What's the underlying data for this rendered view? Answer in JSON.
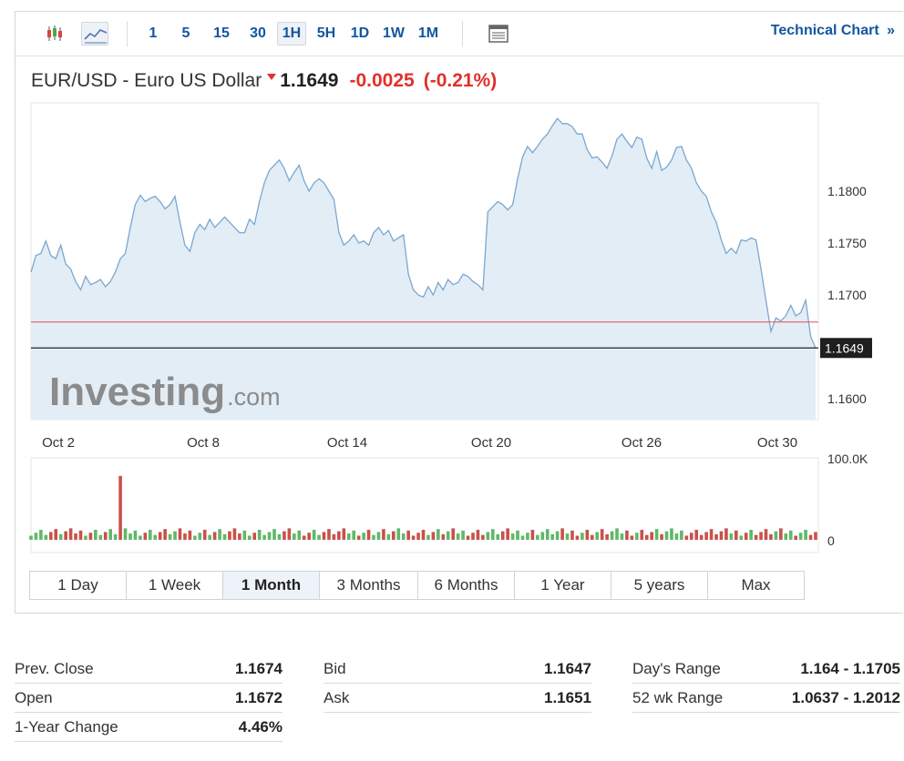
{
  "toolbar": {
    "timeframes": [
      "1",
      "5",
      "15",
      "30",
      "1H",
      "5H",
      "1D",
      "1W",
      "1M"
    ],
    "active_timeframe": "1H",
    "technical_chart_label": "Technical Chart",
    "technical_chart_arrow": "»"
  },
  "header": {
    "name": "EUR/USD - Euro US Dollar",
    "price": "1.1649",
    "change": "-0.0025",
    "change_pct": "(-0.21%)",
    "direction_icon": "down-arrow-icon"
  },
  "colors": {
    "accent": "#1256a0",
    "negative": "#e0312b",
    "line": "#7aa7d0",
    "area": "#e3edf6",
    "prev_close_line": "#e05050",
    "volume_up": "#5fb86a",
    "volume_down": "#c9504b"
  },
  "chart_data": {
    "type": "area",
    "x_tick_labels": [
      "Oct 2",
      "Oct 8",
      "Oct 14",
      "Oct 20",
      "Oct 26",
      "Oct 30"
    ],
    "y_tick_labels": [
      "1.1800",
      "1.1750",
      "1.1700",
      "1.1600"
    ],
    "ylim": [
      1.158,
      1.1885
    ],
    "current_price": 1.1649,
    "current_price_label": "1.1649",
    "reference_line": 1.1674,
    "volume_ticks": [
      "100.0K",
      "0"
    ],
    "volume_max": 100000,
    "watermark_main": "Investing",
    "watermark_suffix": ".com",
    "values": [
      1.1722,
      1.1738,
      1.174,
      1.1752,
      1.1738,
      1.1735,
      1.1748,
      1.173,
      1.1725,
      1.1713,
      1.1705,
      1.1718,
      1.171,
      1.1712,
      1.1715,
      1.1708,
      1.1713,
      1.1722,
      1.1735,
      1.174,
      1.1765,
      1.1787,
      1.1796,
      1.179,
      1.1793,
      1.1795,
      1.179,
      1.1783,
      1.1787,
      1.1795,
      1.177,
      1.1748,
      1.1742,
      1.176,
      1.1768,
      1.1763,
      1.1773,
      1.1765,
      1.177,
      1.1775,
      1.177,
      1.1765,
      1.176,
      1.176,
      1.1773,
      1.1768,
      1.179,
      1.1808,
      1.182,
      1.1825,
      1.183,
      1.1822,
      1.181,
      1.1818,
      1.1825,
      1.181,
      1.18,
      1.1808,
      1.1812,
      1.1808,
      1.18,
      1.1792,
      1.176,
      1.1748,
      1.1752,
      1.1758,
      1.175,
      1.1752,
      1.1748,
      1.176,
      1.1765,
      1.1758,
      1.1762,
      1.1752,
      1.1755,
      1.1758,
      1.172,
      1.1705,
      1.17,
      1.1698,
      1.1708,
      1.17,
      1.1712,
      1.1705,
      1.1715,
      1.171,
      1.1712,
      1.172,
      1.1718,
      1.1713,
      1.171,
      1.1705,
      1.178,
      1.1785,
      1.179,
      1.1787,
      1.1782,
      1.1787,
      1.1812,
      1.1833,
      1.1843,
      1.1837,
      1.1843,
      1.185,
      1.1855,
      1.1863,
      1.187,
      1.1865,
      1.1865,
      1.1862,
      1.1855,
      1.1855,
      1.184,
      1.1832,
      1.1833,
      1.1828,
      1.1822,
      1.1834,
      1.185,
      1.1855,
      1.1848,
      1.1842,
      1.1852,
      1.185,
      1.1832,
      1.1822,
      1.1838,
      1.182,
      1.1823,
      1.183,
      1.1842,
      1.1843,
      1.183,
      1.1822,
      1.1808,
      1.18,
      1.1795,
      1.178,
      1.177,
      1.1753,
      1.174,
      1.1745,
      1.174,
      1.1753,
      1.1752,
      1.1755,
      1.1753,
      1.1725,
      1.1695,
      1.1665,
      1.1678,
      1.1675,
      1.168,
      1.169,
      1.168,
      1.1683,
      1.1695,
      1.166,
      1.1649
    ]
  },
  "range_tabs": [
    "1 Day",
    "1 Week",
    "1 Month",
    "3 Months",
    "6 Months",
    "1 Year",
    "5 years",
    "Max"
  ],
  "active_range": "1 Month",
  "stats": [
    [
      {
        "label": "Prev. Close",
        "value": "1.1674"
      },
      {
        "label": "Open",
        "value": "1.1672"
      },
      {
        "label": "1-Year Change",
        "value": "4.46%"
      }
    ],
    [
      {
        "label": "Bid",
        "value": "1.1647"
      },
      {
        "label": "Ask",
        "value": "1.1651"
      }
    ],
    [
      {
        "label": "Day's Range",
        "value": "1.164 - 1.1705"
      },
      {
        "label": "52 wk Range",
        "value": "1.0637 - 1.2012"
      }
    ]
  ]
}
